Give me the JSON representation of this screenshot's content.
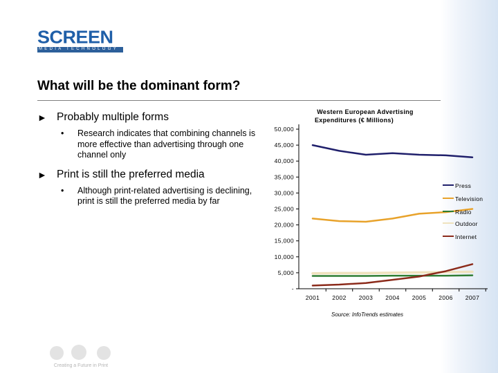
{
  "title": "What will be the dominant form?",
  "logo": {
    "word": "SCREEN",
    "tagline": "MEDIA TECHNOLOGY"
  },
  "bullets": [
    {
      "text": "Probably multiple forms",
      "sub": "Research indicates that combining channels is more effective than advertising through one channel only"
    },
    {
      "text": "Print is still the preferred media",
      "sub": "Although print-related advertising is declining, print is still the preferred media by far"
    }
  ],
  "footer_text": "Creating a Future in Print",
  "colors": {
    "brand": "#1f5fa8",
    "press": "#1f1f6b",
    "television": "#e8a22a",
    "radio": "#2e7d32",
    "outdoor": "#f3e7c4",
    "internet": "#8b2a1a"
  },
  "chart_data": {
    "type": "line",
    "title": "Western European Advertising Expenditures (€ Millions)",
    "source": "Source: InfoTrends estimates",
    "x": [
      "2001",
      "2002",
      "2003",
      "2004",
      "2005",
      "2006",
      "2007"
    ],
    "ylim": [
      0,
      50000
    ],
    "yticks": [
      "-",
      "5,000",
      "10,000",
      "15,000",
      "20,000",
      "25,000",
      "30,000",
      "35,000",
      "40,000",
      "45,000",
      "50,000"
    ],
    "series": [
      {
        "name": "Press",
        "color": "#1f1f6b",
        "values": [
          45000,
          43200,
          42000,
          42500,
          42000,
          41800,
          41200
        ]
      },
      {
        "name": "Television",
        "color": "#e8a22a",
        "values": [
          22000,
          21200,
          21000,
          22000,
          23500,
          24000,
          25000
        ]
      },
      {
        "name": "Radio",
        "color": "#2e7d32",
        "values": [
          4000,
          4000,
          4000,
          4100,
          4100,
          4100,
          4200
        ]
      },
      {
        "name": "Outdoor",
        "color": "#efe2bd",
        "values": [
          4800,
          4900,
          4900,
          5000,
          5100,
          5200,
          5300
        ]
      },
      {
        "name": "Internet",
        "color": "#8b2a1a",
        "values": [
          1000,
          1300,
          1800,
          2800,
          3800,
          5500,
          7700
        ]
      }
    ]
  }
}
